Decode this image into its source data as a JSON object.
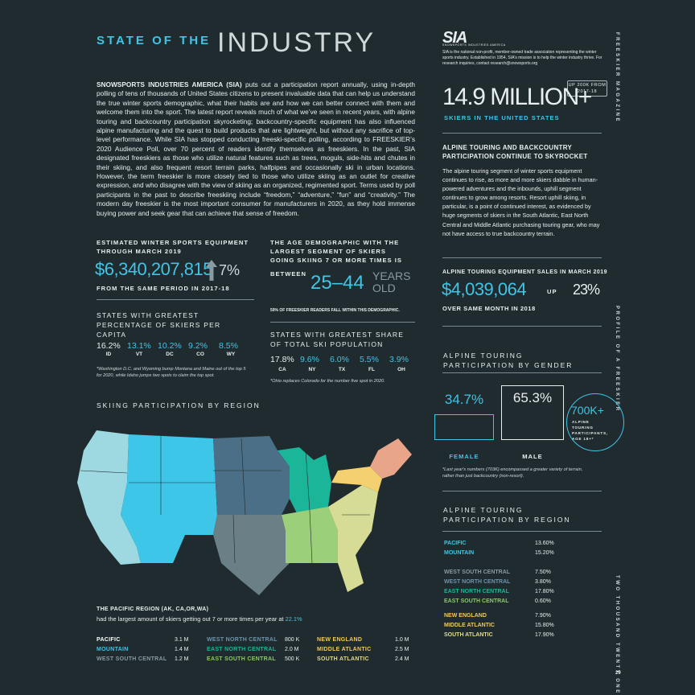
{
  "header": {
    "kicker": "STATE OF THE",
    "title": "INDUSTRY",
    "logo": "SIA",
    "logo_sub": "SNOWSPORTS INDUSTRIES AMERICA",
    "about": "SIA is the national non-profit, member-owned trade association representing the winter sports industry. Established in 1954, SIA's mission is to help the winter industry thrive. For research inquiries, contact research@snowsports.org"
  },
  "side": {
    "magazine": "FREESKIER MAGAZINE",
    "section": "PROFILE OF A FREESKIER",
    "year": "TWO THOUSAND TWENTY ONE",
    "page": "29"
  },
  "intro": {
    "lead": "SNOWSPORTS INDUSTRIES AMERICA (SIA)",
    "body": "puts out a participation report annually, using in-depth polling of tens of thousands of United States citizens to present invaluable data that can help us understand the true winter sports demographic, what their habits are and how we can better connect with them and welcome them into the sport. The latest report reveals much of what we’ve seen in recent years, with alpine touring and backcountry participation skyrocketing; backcountry-specific equipment has also influenced alpine manufacturing and the quest to build products that are lightweight, but without any sacrifice of top-level performance. While SIA has stopped conducting freeski-specific polling, according to FREESKIER’s 2020 Audience Poll, over 70 percent of readers identify themselves as freeskiers. In the past, SIA designated freeskiers as those who utilize natural features such as trees, moguls, side-hits and chutes in their skiing, and also frequent resort terrain parks, halfpipes and occasionally ski in urban locations. However, the term freeskier is more closely tied to those who utilize skiing as an outlet for creative expression, and who disagree with the view of skiing as an organized, regimented sport. Terms used by poll participants in the past to describe freeskiing include “freedom,” “adventure,” “fun” and “creativity.” The modern day freeskier is the most important consumer for manufacturers in 2020, as they hold immense buying power and seek gear that can achieve that sense of freedom."
  },
  "equipment": {
    "label": "ESTIMATED WINTER SPORTS EQUIPMENT THROUGH MARCH 2019",
    "value": "$6,340,207,815",
    "change": "7%",
    "note": "FROM THE SAME PERIOD IN 2017-18"
  },
  "age": {
    "label": "THE AGE DEMOGRAPHIC WITH THE LARGEST SEGMENT OF SKIERS GOING SKIING 7 OR MORE TIMES IS",
    "between": "BETWEEN",
    "range": "25–44",
    "unit": "YEARS OLD",
    "note": "59% OF FREESKIER READERS FALL WITHIN THIS DEMOGRAPHIC."
  },
  "per_capita": {
    "label": "STATES WITH GREATEST PERCENTAGE OF SKIERS PER CAPITA",
    "items": [
      {
        "value": "16.2%",
        "state": "ID"
      },
      {
        "value": "13.1%",
        "state": "VT"
      },
      {
        "value": "10.2%",
        "state": "DC"
      },
      {
        "value": "9.2%",
        "state": "CO"
      },
      {
        "value": "8.5%",
        "state": "WY"
      }
    ],
    "note": "*Washington D.C. and Wyoming bump Montana and Maine out of the top 5 for 2020, while Idaho jumps two spots to claim the top spot."
  },
  "share": {
    "label": "STATES WITH GREATEST SHARE OF TOTAL SKI POPULATION",
    "items": [
      {
        "value": "17.8%",
        "state": "CA"
      },
      {
        "value": "9.6%",
        "state": "NY"
      },
      {
        "value": "6.0%",
        "state": "TX"
      },
      {
        "value": "5.5%",
        "state": "FL"
      },
      {
        "value": "3.9%",
        "state": "OH"
      }
    ],
    "note": "*Ohio replaces Colorado for the number five spot in 2020."
  },
  "map": {
    "title": "SKIING PARTICIPATION BY REGION",
    "highlight": "THE PACIFIC REGION (AK, CA,OR,WA)",
    "sentence": "had the largest amount of skiers getting out 7 or more times per year at",
    "highlight_value": "22.1%",
    "regions": [
      {
        "name": "PACIFIC",
        "value": "3.1 M",
        "color": "#ffffff"
      },
      {
        "name": "MOUNTAIN",
        "value": "1.4 M",
        "color": "#3ec6e8"
      },
      {
        "name": "WEST SOUTH CENTRAL",
        "value": "1.2 M",
        "color": "#8a9aa0"
      },
      {
        "name": "WEST NORTH CENTRAL",
        "value": "800 K",
        "color": "#6f93ab"
      },
      {
        "name": "EAST NORTH CENTRAL",
        "value": "2.0 M",
        "color": "#1bb59a"
      },
      {
        "name": "EAST SOUTH CENTRAL",
        "value": "500 K",
        "color": "#8cc870"
      },
      {
        "name": "NEW ENGLAND",
        "value": "1.0 M",
        "color": "#f2c860"
      },
      {
        "name": "MIDDLE ATLANTIC",
        "value": "2.5 M",
        "color": "#f2c860"
      },
      {
        "name": "SOUTH ATLANTIC",
        "value": "2.4 M",
        "color": "#e3dc90"
      }
    ]
  },
  "skiers": {
    "value": "14.9 MILLION+",
    "badge": "UP 200K FROM 2017-18",
    "label": "SKIERS IN THE UNITED STATES"
  },
  "touring": {
    "heading": "ALPINE TOURING AND BACKCOUNTRY PARTICIPATION CONTINUE TO SKYROCKET",
    "body": "The alpine touring segment of winter sports equipment continues to rise, as more and more skiers dabble in human-powered adventures and the inbounds, uphill segment continues to grow among resorts. Resort uphill skiing, in particular, is a point of continued interest, as evidenced by huge segments of skiers in the South Atlantic, East North Central and Middle Atlantic purchasing touring gear, who may not have access to true backcountry terrain."
  },
  "sales": {
    "label": "ALPINE TOURING EQUIPMENT SALES IN MARCH 2019",
    "value": "$4,039,064",
    "up": "UP",
    "change": "23%",
    "note": "OVER SAME MONTH IN 2018"
  },
  "gender": {
    "title": "ALPINE TOURING PARTICIPATION BY GENDER",
    "female_value": "34.7%",
    "female": "FEMALE",
    "male_value": "65.3%",
    "male": "MALE",
    "total": "700K+",
    "total_label": "ALPINE TOURING PARTICIPANTS, AGE 18+*",
    "note": "*Last year's numbers (703K) encompassed a greater variety of terrain, rather than just backcountry (non-resort)."
  },
  "touring_regions": {
    "title": "ALPINE TOURING PARTICIPATION BY REGION",
    "rows": [
      {
        "name": "PACIFIC",
        "value": "13.60%",
        "color": "#3ec6e8"
      },
      {
        "name": "MOUNTAIN",
        "value": "15.20%",
        "color": "#3ec6e8"
      },
      {
        "name": "WEST SOUTH CENTRAL",
        "value": "7.50%",
        "color": "#8a9aa0"
      },
      {
        "name": "WEST NORTH CENTRAL",
        "value": "3.80%",
        "color": "#6f93ab"
      },
      {
        "name": "EAST NORTH CENTRAL",
        "value": "17.80%",
        "color": "#1bb59a"
      },
      {
        "name": "EAST SOUTH CENTRAL",
        "value": "0.60%",
        "color": "#8cc870"
      },
      {
        "name": "NEW ENGLAND",
        "value": "7.90%",
        "color": "#f2c860"
      },
      {
        "name": "MIDDLE ATLANTIC",
        "value": "15.80%",
        "color": "#f2c860"
      },
      {
        "name": "SOUTH ATLANTIC",
        "value": "17.90%",
        "color": "#e3dc90"
      }
    ]
  }
}
